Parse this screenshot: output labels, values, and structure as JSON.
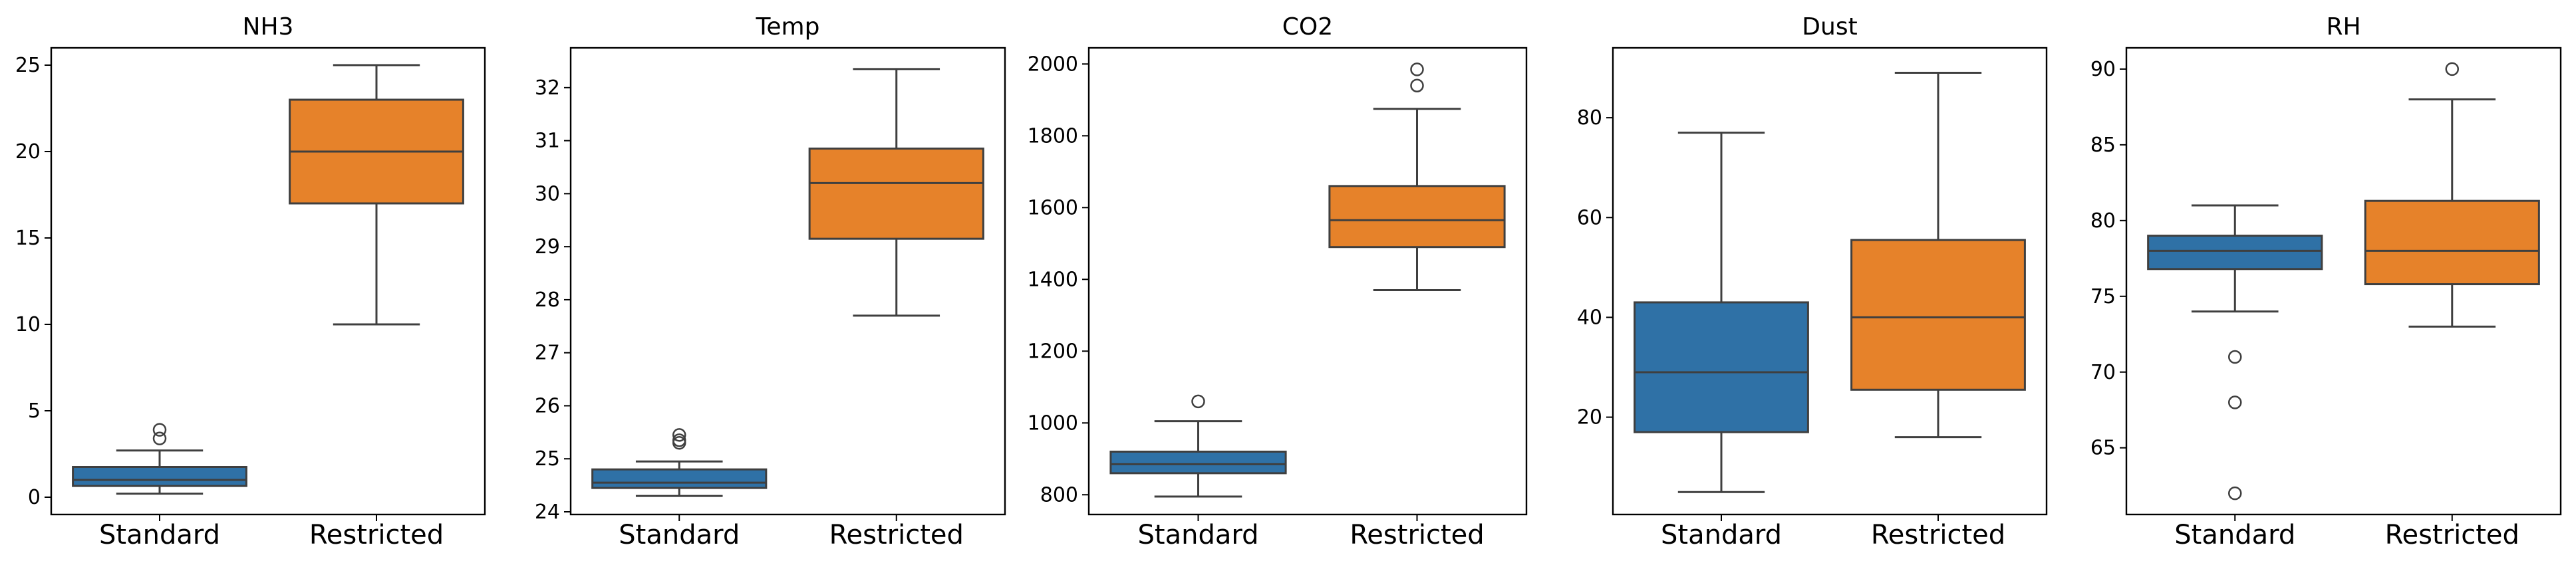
{
  "colors": {
    "Standard": "#2f71a6",
    "Restricted": "#e6822a",
    "line": "#3f3f3f"
  },
  "chart_data": [
    {
      "type": "box",
      "title": "NH3",
      "categories": [
        "Standard",
        "Restricted"
      ],
      "ylim": [
        -1,
        26
      ],
      "yticks": [
        0,
        5,
        10,
        15,
        20,
        25
      ],
      "boxes": [
        {
          "name": "Standard",
          "whislo": 0.2,
          "q1": 0.65,
          "med": 1.0,
          "q3": 1.75,
          "whishi": 2.7,
          "fliers": [
            3.4,
            3.9
          ]
        },
        {
          "name": "Restricted",
          "whislo": 10.0,
          "q1": 17.0,
          "med": 20.0,
          "q3": 23.0,
          "whishi": 25.0,
          "fliers": []
        }
      ]
    },
    {
      "type": "box",
      "title": "Temp",
      "categories": [
        "Standard",
        "Restricted"
      ],
      "ylim": [
        23.95,
        32.75
      ],
      "yticks": [
        24,
        25,
        26,
        27,
        28,
        29,
        30,
        31,
        32
      ],
      "boxes": [
        {
          "name": "Standard",
          "whislo": 24.3,
          "q1": 24.45,
          "med": 24.55,
          "q3": 24.8,
          "whishi": 24.95,
          "fliers": [
            25.3,
            25.35,
            25.45
          ]
        },
        {
          "name": "Restricted",
          "whislo": 27.7,
          "q1": 29.15,
          "med": 30.2,
          "q3": 30.85,
          "whishi": 32.35,
          "fliers": []
        }
      ]
    },
    {
      "type": "box",
      "title": "CO2",
      "categories": [
        "Standard",
        "Restricted"
      ],
      "ylim": [
        745,
        2045
      ],
      "yticks": [
        800,
        1000,
        1200,
        1400,
        1600,
        1800,
        2000
      ],
      "boxes": [
        {
          "name": "Standard",
          "whislo": 795,
          "q1": 860,
          "med": 885,
          "q3": 920,
          "whishi": 1005,
          "fliers": [
            1060
          ]
        },
        {
          "name": "Restricted",
          "whislo": 1370,
          "q1": 1490,
          "med": 1565,
          "q3": 1660,
          "whishi": 1875,
          "fliers": [
            1940,
            1985
          ]
        }
      ]
    },
    {
      "type": "box",
      "title": "Dust",
      "categories": [
        "Standard",
        "Restricted"
      ],
      "ylim": [
        0.5,
        94.0
      ],
      "yticks": [
        20,
        40,
        60,
        80
      ],
      "boxes": [
        {
          "name": "Standard",
          "whislo": 5,
          "q1": 17,
          "med": 29,
          "q3": 43,
          "whishi": 77,
          "fliers": []
        },
        {
          "name": "Restricted",
          "whislo": 16,
          "q1": 25.5,
          "med": 40,
          "q3": 55.5,
          "whishi": 89,
          "fliers": []
        }
      ]
    },
    {
      "type": "box",
      "title": "RH",
      "categories": [
        "Standard",
        "Restricted"
      ],
      "ylim": [
        60.6,
        91.4
      ],
      "yticks": [
        65,
        70,
        75,
        80,
        85,
        90
      ],
      "boxes": [
        {
          "name": "Standard",
          "whislo": 74,
          "q1": 76.8,
          "med": 78,
          "q3": 79,
          "whishi": 81,
          "fliers": [
            71,
            68,
            62
          ]
        },
        {
          "name": "Restricted",
          "whislo": 73,
          "q1": 75.8,
          "med": 78,
          "q3": 81.3,
          "whishi": 88,
          "fliers": [
            90
          ]
        }
      ]
    }
  ]
}
